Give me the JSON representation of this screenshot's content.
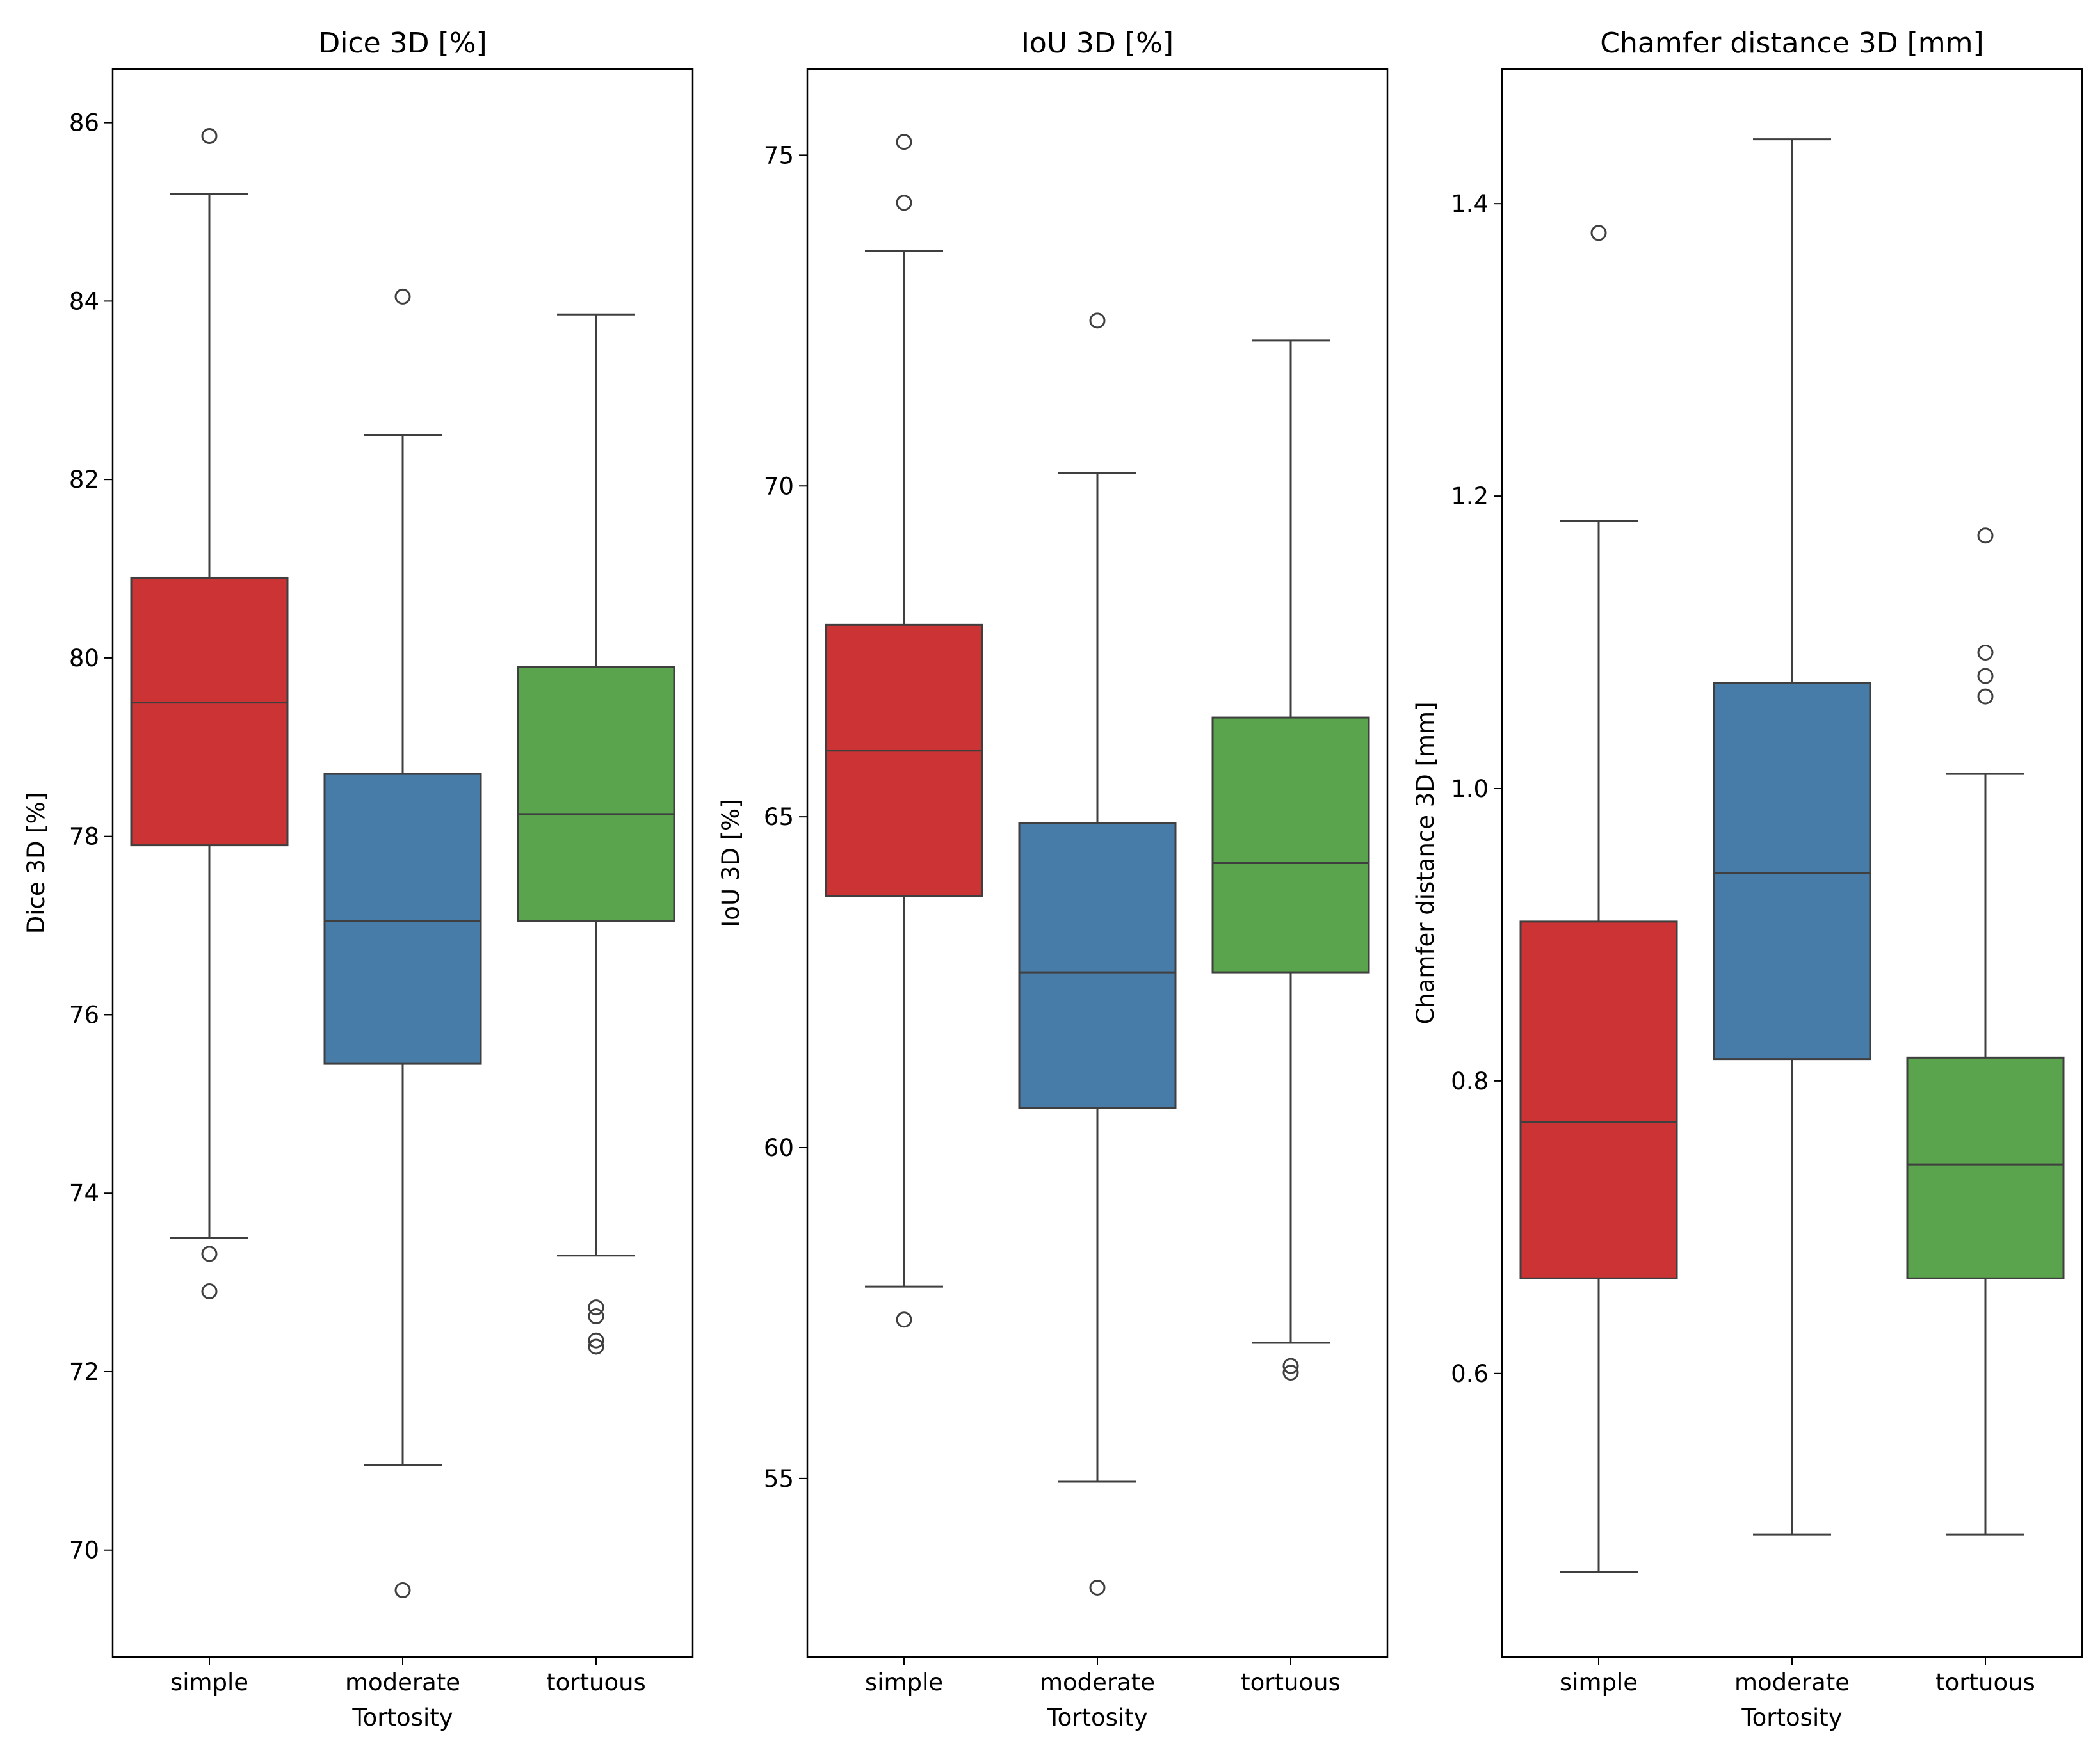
{
  "chart_data": [
    {
      "type": "box",
      "title": "Dice 3D [%]",
      "xlabel": "Tortosity",
      "ylabel": "Dice 3D [%]",
      "categories": [
        "simple",
        "moderate",
        "tortuous"
      ],
      "ylim": [
        68.8,
        86.6
      ],
      "yticks": [
        70,
        72,
        74,
        76,
        78,
        80,
        82,
        84,
        86
      ],
      "yticklabels": [
        "70",
        "72",
        "74",
        "76",
        "78",
        "80",
        "82",
        "84",
        "86"
      ],
      "colors": [
        "#cb3335",
        "#477ca8",
        "#59a44c"
      ],
      "boxes": [
        {
          "category": "simple",
          "whisker_low": 73.5,
          "q1": 77.9,
          "median": 79.5,
          "q3": 80.9,
          "whisker_high": 85.2,
          "outliers": [
            85.85,
            73.32,
            72.9
          ]
        },
        {
          "category": "moderate",
          "whisker_low": 70.95,
          "q1": 75.45,
          "median": 77.05,
          "q3": 78.7,
          "whisker_high": 82.5,
          "outliers": [
            84.05,
            69.55
          ]
        },
        {
          "category": "tortuous",
          "whisker_low": 73.3,
          "q1": 77.05,
          "median": 78.25,
          "q3": 79.9,
          "whisker_high": 83.85,
          "outliers": [
            72.72,
            72.62,
            72.35,
            72.28
          ]
        }
      ]
    },
    {
      "type": "box",
      "title": "IoU 3D [%]",
      "xlabel": "Tortosity",
      "ylabel": "IoU 3D [%]",
      "categories": [
        "simple",
        "moderate",
        "tortuous"
      ],
      "ylim": [
        52.3,
        76.3
      ],
      "yticks": [
        55,
        60,
        65,
        70,
        75
      ],
      "yticklabels": [
        "55",
        "60",
        "65",
        "70",
        "75"
      ],
      "colors": [
        "#cb3335",
        "#477ca8",
        "#59a44c"
      ],
      "boxes": [
        {
          "category": "simple",
          "whisker_low": 57.9,
          "q1": 63.8,
          "median": 66.0,
          "q3": 67.9,
          "whisker_high": 73.55,
          "outliers": [
            75.2,
            74.28,
            57.4
          ]
        },
        {
          "category": "moderate",
          "whisker_low": 54.95,
          "q1": 60.6,
          "median": 62.65,
          "q3": 64.9,
          "whisker_high": 70.2,
          "outliers": [
            72.5,
            53.35
          ]
        },
        {
          "category": "tortuous",
          "whisker_low": 57.05,
          "q1": 62.65,
          "median": 64.3,
          "q3": 66.5,
          "whisker_high": 72.2,
          "outliers": [
            56.7,
            56.6
          ]
        }
      ]
    },
    {
      "type": "box",
      "title": "Chamfer distance 3D [mm]",
      "xlabel": "Tortosity",
      "ylabel": "Chamfer distance 3D [mm]",
      "categories": [
        "simple",
        "moderate",
        "tortuous"
      ],
      "ylim": [
        0.406,
        1.492
      ],
      "yticks": [
        0.6,
        0.8,
        1.0,
        1.2,
        1.4
      ],
      "yticklabels": [
        "0.6",
        "0.8",
        "1.0",
        "1.2",
        "1.4"
      ],
      "colors": [
        "#cb3335",
        "#477ca8",
        "#59a44c"
      ],
      "boxes": [
        {
          "category": "simple",
          "whisker_low": 0.464,
          "q1": 0.665,
          "median": 0.772,
          "q3": 0.909,
          "whisker_high": 1.183,
          "outliers": [
            1.38
          ]
        },
        {
          "category": "moderate",
          "whisker_low": 0.49,
          "q1": 0.815,
          "median": 0.942,
          "q3": 1.072,
          "whisker_high": 1.444,
          "outliers": []
        },
        {
          "category": "tortuous",
          "whisker_low": 0.49,
          "q1": 0.665,
          "median": 0.743,
          "q3": 0.816,
          "whisker_high": 1.01,
          "outliers": [
            1.173,
            1.093,
            1.077,
            1.063
          ]
        }
      ]
    }
  ]
}
